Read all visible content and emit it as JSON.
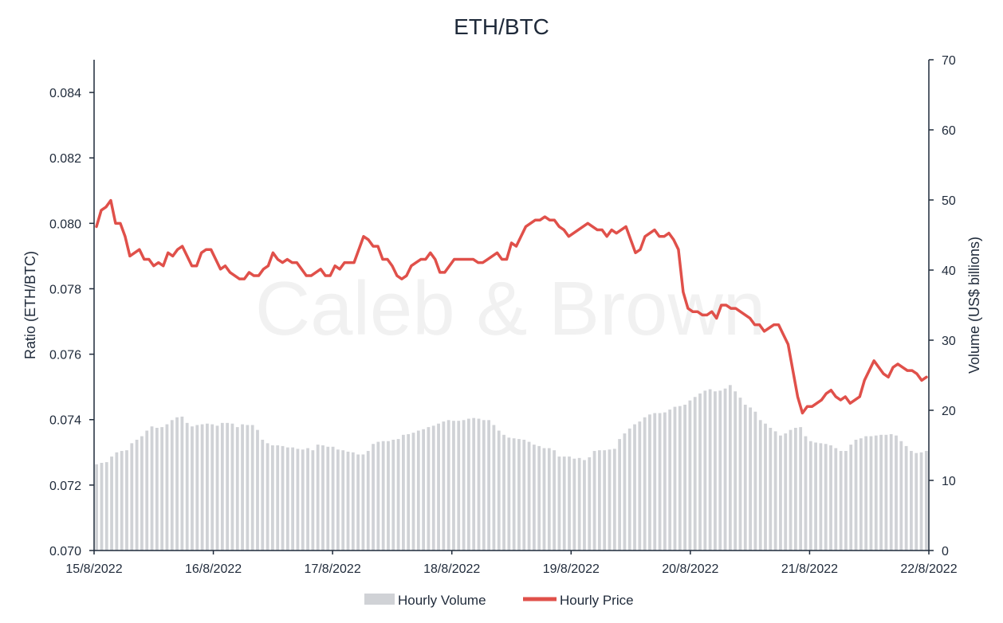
{
  "chart_data": {
    "type": "bar+line",
    "title": "ETH/BTC",
    "watermark": "Caleb & Brown",
    "y_left": {
      "label": "Ratio (ETH/BTC)",
      "lim": [
        0.07,
        0.085
      ],
      "ticks": [
        "0.070",
        "0.072",
        "0.074",
        "0.076",
        "0.078",
        "0.080",
        "0.082",
        "0.084"
      ]
    },
    "y_right": {
      "label": "Volume (US$ billions)",
      "lim": [
        0,
        70
      ],
      "ticks": [
        "0",
        "10",
        "20",
        "30",
        "40",
        "50",
        "60",
        "70"
      ]
    },
    "x": {
      "ticks": [
        "15/8/2022",
        "16/8/2022",
        "17/8/2022",
        "18/8/2022",
        "19/8/2022",
        "20/8/2022",
        "21/8/2022",
        "22/8/2022"
      ]
    },
    "grid": false,
    "legend_position": "bottom",
    "series": [
      {
        "name": "Hourly Volume",
        "type": "bar",
        "axis": "right",
        "color": "#d0d2d6",
        "values": [
          12.3,
          12.5,
          12.6,
          13.4,
          14,
          14.2,
          14.3,
          15.3,
          15.8,
          16.3,
          17.1,
          17.7,
          17.5,
          17.6,
          18,
          18.6,
          19,
          19.1,
          18.2,
          17.7,
          17.9,
          18,
          18.1,
          18,
          17.8,
          18.2,
          18.2,
          18.1,
          17.6,
          18,
          17.9,
          17.9,
          17.2,
          15.8,
          15.3,
          15,
          15,
          14.9,
          14.7,
          14.7,
          14.5,
          14.4,
          14.6,
          14.3,
          15.1,
          15,
          14.8,
          14.8,
          14.4,
          14.3,
          14.1,
          14,
          13.7,
          13.7,
          14.2,
          15.2,
          15.5,
          15.6,
          15.6,
          15.8,
          15.9,
          16.5,
          16.6,
          16.8,
          17.1,
          17.3,
          17.6,
          17.8,
          18.1,
          18.4,
          18.6,
          18.5,
          18.5,
          18.6,
          18.8,
          18.9,
          18.8,
          18.6,
          18.6,
          17.9,
          17.1,
          16.5,
          16.1,
          16,
          15.9,
          15.8,
          15.5,
          15.1,
          14.9,
          14.6,
          14.6,
          14.3,
          13.4,
          13.4,
          13.4,
          13.1,
          13.2,
          12.9,
          13.3,
          14.2,
          14.3,
          14.3,
          14.4,
          14.5,
          15.9,
          16.7,
          17.4,
          18,
          18.4,
          19,
          19.4,
          19.6,
          19.6,
          19.7,
          20.1,
          20.5,
          20.6,
          20.8,
          21.4,
          21.9,
          22.4,
          22.8,
          23,
          22.7,
          22.8,
          23.1,
          23.6,
          22.7,
          21.8,
          20.8,
          20.4,
          19.8,
          18.6,
          18.1,
          17.5,
          17,
          16.4,
          16.7,
          17.2,
          17.5,
          17.6,
          16.3,
          15.6,
          15.4,
          15.3,
          15.2,
          15,
          14.6,
          14.2,
          14.2,
          15.1,
          15.8,
          16,
          16.3,
          16.3,
          16.4,
          16.5,
          16.5,
          16.6,
          16.4,
          15.6,
          14.9,
          14.2,
          13.9,
          14,
          14.2
        ]
      },
      {
        "name": "Hourly Price",
        "type": "line",
        "axis": "left",
        "color": "#e0504a",
        "values": [
          0.0799,
          0.0804,
          0.0805,
          0.0807,
          0.08,
          0.08,
          0.0796,
          0.079,
          0.0791,
          0.0792,
          0.0789,
          0.0789,
          0.0787,
          0.0788,
          0.0787,
          0.0791,
          0.079,
          0.0792,
          0.0793,
          0.079,
          0.0787,
          0.0787,
          0.0791,
          0.0792,
          0.0792,
          0.0789,
          0.0786,
          0.0787,
          0.0785,
          0.0784,
          0.0783,
          0.0783,
          0.0785,
          0.0784,
          0.0784,
          0.0786,
          0.0787,
          0.0791,
          0.0789,
          0.0788,
          0.0789,
          0.0788,
          0.0788,
          0.0786,
          0.0784,
          0.0784,
          0.0785,
          0.0786,
          0.0784,
          0.0784,
          0.0787,
          0.0786,
          0.0788,
          0.0788,
          0.0788,
          0.0792,
          0.0796,
          0.0795,
          0.0793,
          0.0793,
          0.0789,
          0.0789,
          0.0787,
          0.0784,
          0.0783,
          0.0784,
          0.0787,
          0.0788,
          0.0789,
          0.0789,
          0.0791,
          0.0789,
          0.0785,
          0.0785,
          0.0787,
          0.0789,
          0.0789,
          0.0789,
          0.0789,
          0.0789,
          0.0788,
          0.0788,
          0.0789,
          0.079,
          0.0791,
          0.0789,
          0.0789,
          0.0794,
          0.0793,
          0.0796,
          0.0799,
          0.08,
          0.0801,
          0.0801,
          0.0802,
          0.0801,
          0.0801,
          0.0799,
          0.0798,
          0.0796,
          0.0797,
          0.0798,
          0.0799,
          0.08,
          0.0799,
          0.0798,
          0.0798,
          0.0796,
          0.0798,
          0.0797,
          0.0798,
          0.0799,
          0.0795,
          0.0791,
          0.0792,
          0.0796,
          0.0797,
          0.0798,
          0.0796,
          0.0796,
          0.0797,
          0.0795,
          0.0792,
          0.0779,
          0.0774,
          0.0773,
          0.0773,
          0.0772,
          0.0772,
          0.0773,
          0.0771,
          0.0775,
          0.0775,
          0.0774,
          0.0774,
          0.0773,
          0.0772,
          0.0771,
          0.0769,
          0.0769,
          0.0767,
          0.0768,
          0.0769,
          0.0769,
          0.0766,
          0.0763,
          0.0755,
          0.0747,
          0.0742,
          0.0744,
          0.0744,
          0.0745,
          0.0746,
          0.0748,
          0.0749,
          0.0747,
          0.0746,
          0.0747,
          0.0745,
          0.0746,
          0.0747,
          0.0752,
          0.0755,
          0.0758,
          0.0756,
          0.0754,
          0.0753,
          0.0756,
          0.0757,
          0.0756,
          0.0755,
          0.0755,
          0.0754,
          0.0752,
          0.0753
        ]
      }
    ]
  },
  "legend": [
    {
      "label": "Hourly Volume",
      "swatch": "bar",
      "color": "#d0d2d6"
    },
    {
      "label": "Hourly Price",
      "swatch": "line",
      "color": "#e0504a"
    }
  ]
}
